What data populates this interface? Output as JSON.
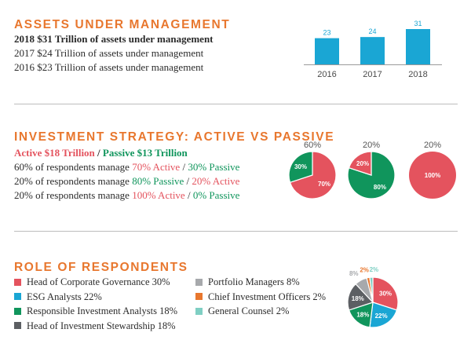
{
  "colors": {
    "accent": "#e8772e",
    "bar": "#1aa6d4",
    "active": "#e4535e",
    "passive": "#10955c",
    "gray_dark": "#5c5f63",
    "gray_light": "#a7a9ac",
    "teal": "#7fcfc3",
    "orange": "#e8772e"
  },
  "assets": {
    "heading": "ASSETS UNDER MANAGEMENT",
    "lines": [
      "2018 $31 Trillion of assets under management",
      "2017 $24 Trillion of assets under management",
      "2016 $23 Trillion of assets under management"
    ]
  },
  "strategy": {
    "heading": "INVESTMENT STRATEGY: ACTIVE VS PASSIVE",
    "active_total": "Active $18 Trillion",
    "separator": " / ",
    "passive_total": "Passive $13 Trillion",
    "rows": [
      {
        "prefix": "60% of respondents manage ",
        "a": "70% Active",
        "sep": " / ",
        "b": "30% Passive",
        "a_color": "red",
        "b_color": "green"
      },
      {
        "prefix": "20% of respondents manage ",
        "a": "80% Passive",
        "sep": " / ",
        "b": "20% Active",
        "a_color": "green",
        "b_color": "red"
      },
      {
        "prefix": "20% of respondents manage ",
        "a": "100% Active",
        "sep": " / ",
        "b": "0% Passive",
        "a_color": "red",
        "b_color": "green"
      }
    ]
  },
  "respondents": {
    "heading": "ROLE OF RESPONDENTS",
    "legend_left": [
      {
        "label": "Head of Corporate Governance 30%",
        "color": "#e4535e"
      },
      {
        "label": "ESG Analysts 22%",
        "color": "#1aa6d4"
      },
      {
        "label": "Responsible Investment Analysts 18%",
        "color": "#10955c"
      },
      {
        "label": "Head of Investment Stewardship 18%",
        "color": "#5c5f63"
      }
    ],
    "legend_right": [
      {
        "label": "Portfolio Managers 8%",
        "color": "#a7a9ac"
      },
      {
        "label": "Chief Investment Officers 2%",
        "color": "#e8772e"
      },
      {
        "label": "General Counsel 2%",
        "color": "#7fcfc3"
      }
    ]
  },
  "chart_data": [
    {
      "type": "bar",
      "categories": [
        "2016",
        "2017",
        "2018"
      ],
      "values": [
        23,
        24,
        31
      ],
      "title": "",
      "xlabel": "",
      "ylabel": "",
      "ylim": [
        0,
        31
      ],
      "grid": false,
      "data_labels": true,
      "color": "#1aa6d4"
    },
    {
      "type": "pie",
      "title": "60%",
      "slices": [
        {
          "label": "70%",
          "value": 70,
          "color": "#e4535e"
        },
        {
          "label": "30%",
          "value": 30,
          "color": "#10955c"
        }
      ]
    },
    {
      "type": "pie",
      "title": "20%",
      "slices": [
        {
          "label": "80%",
          "value": 80,
          "color": "#10955c"
        },
        {
          "label": "20%",
          "value": 20,
          "color": "#e4535e"
        }
      ]
    },
    {
      "type": "pie",
      "title": "20%",
      "slices": [
        {
          "label": "100%",
          "value": 100,
          "color": "#e4535e"
        }
      ]
    },
    {
      "type": "pie",
      "title": "",
      "slices": [
        {
          "label": "30%",
          "value": 30,
          "color": "#e4535e"
        },
        {
          "label": "22%",
          "value": 22,
          "color": "#1aa6d4"
        },
        {
          "label": "18%",
          "value": 18,
          "color": "#10955c"
        },
        {
          "label": "18%",
          "value": 18,
          "color": "#5c5f63"
        },
        {
          "label": "8%",
          "value": 8,
          "color": "#a7a9ac"
        },
        {
          "label": "2%",
          "value": 2,
          "color": "#e8772e"
        },
        {
          "label": "2%",
          "value": 2,
          "color": "#7fcfc3"
        }
      ]
    }
  ]
}
